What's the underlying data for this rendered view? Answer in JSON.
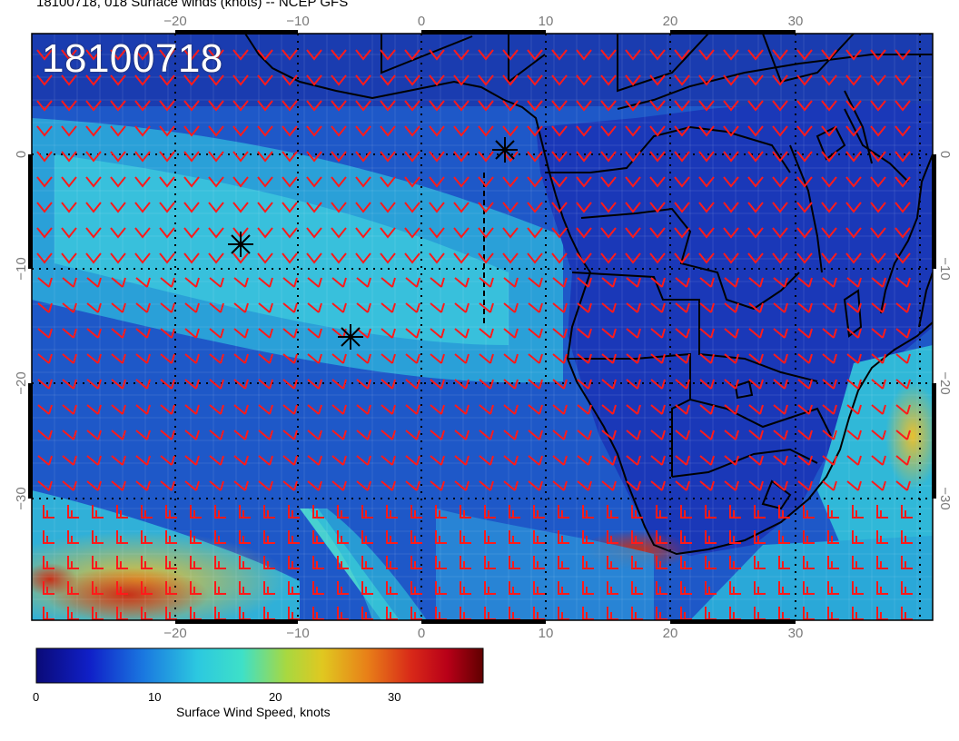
{
  "header": {
    "title": "18100718, 018 Surface winds (knots) -- NCEP GFS",
    "stamp": "18100718"
  },
  "axes": {
    "lon_ticks": [
      "−20",
      "−10",
      "0",
      "10",
      "20",
      "30"
    ],
    "lat_ticks": [
      "0",
      "−10",
      "−20",
      "−30"
    ]
  },
  "colorbar": {
    "labels": [
      "0",
      "10",
      "20",
      "30"
    ],
    "title": "Surface Wind Speed, knots"
  },
  "colors": {
    "barb": "#ff1a1a",
    "coast": "#000000"
  },
  "markers": [
    "storm-marker",
    "storm-marker",
    "storm-marker"
  ]
}
